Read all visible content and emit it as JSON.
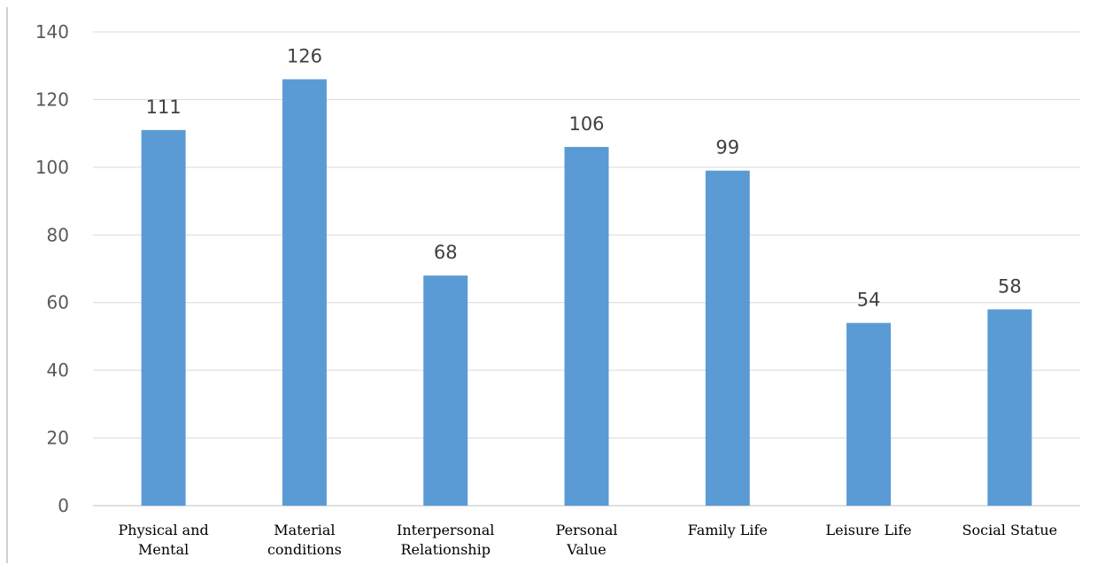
{
  "chart_data": {
    "type": "bar",
    "categories": [
      [
        "Physical and",
        "Mental"
      ],
      [
        "Material",
        "conditions"
      ],
      [
        "Interpersonal",
        "Relationship"
      ],
      [
        "Personal",
        "Value"
      ],
      [
        "Family Life"
      ],
      [
        "Leisure Life"
      ],
      [
        "Social Statue"
      ]
    ],
    "values": [
      111,
      126,
      68,
      106,
      99,
      54,
      58
    ],
    "ylim": [
      0,
      140
    ],
    "yticks": [
      0,
      20,
      40,
      60,
      80,
      100,
      120,
      140
    ],
    "grid": true,
    "legend": "none",
    "data_labels": true,
    "colors": {
      "bar": "#5b9bd5"
    }
  }
}
